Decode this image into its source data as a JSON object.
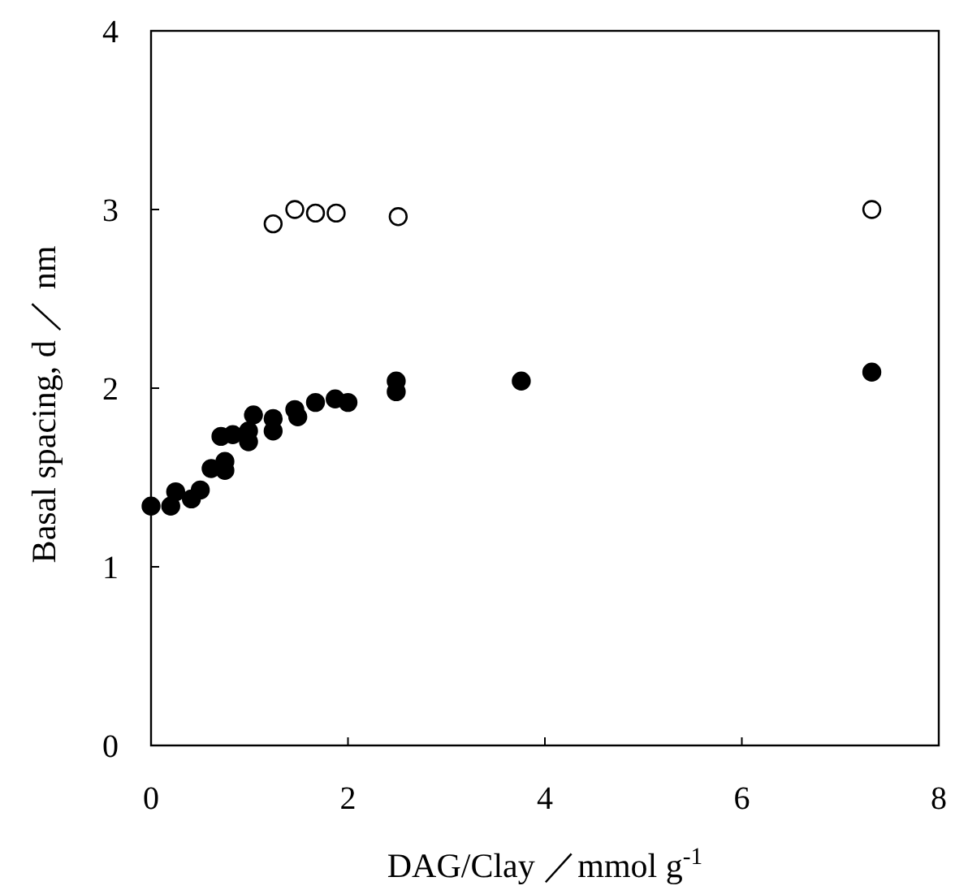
{
  "chart_data": {
    "type": "scatter",
    "xlabel": "DAG/Clay ／mmol g$^{-1}$",
    "ylabel": "Basal spacing, d ／ nm",
    "xlim": [
      0,
      8
    ],
    "ylim": [
      0,
      4
    ],
    "xticks": [
      0,
      2,
      4,
      6,
      8
    ],
    "yticks": [
      0,
      1,
      2,
      3,
      4
    ],
    "marker": "circle",
    "series": [
      {
        "color": "#ffffff",
        "x": [
          1.24,
          1.46,
          1.67,
          1.88,
          2.51,
          7.32
        ],
        "values": [
          2.92,
          3.0,
          2.98,
          2.98,
          2.96,
          3.0
        ]
      },
      {
        "color": "#000000",
        "x": [
          0,
          0.2,
          0.25,
          0.41,
          0.5,
          0.61,
          0.71,
          0.75,
          0.75,
          0.83,
          0.99,
          0.99,
          1.04,
          1.24,
          1.24,
          1.46,
          1.49,
          1.67,
          1.87,
          2.0,
          2.49,
          2.49,
          3.76,
          7.32
        ],
        "values": [
          1.34,
          1.34,
          1.42,
          1.38,
          1.43,
          1.55,
          1.73,
          1.54,
          1.59,
          1.74,
          1.7,
          1.76,
          1.85,
          1.83,
          1.76,
          1.88,
          1.84,
          1.92,
          1.94,
          1.92,
          2.04,
          1.98,
          2.04,
          2.09
        ]
      }
    ]
  }
}
